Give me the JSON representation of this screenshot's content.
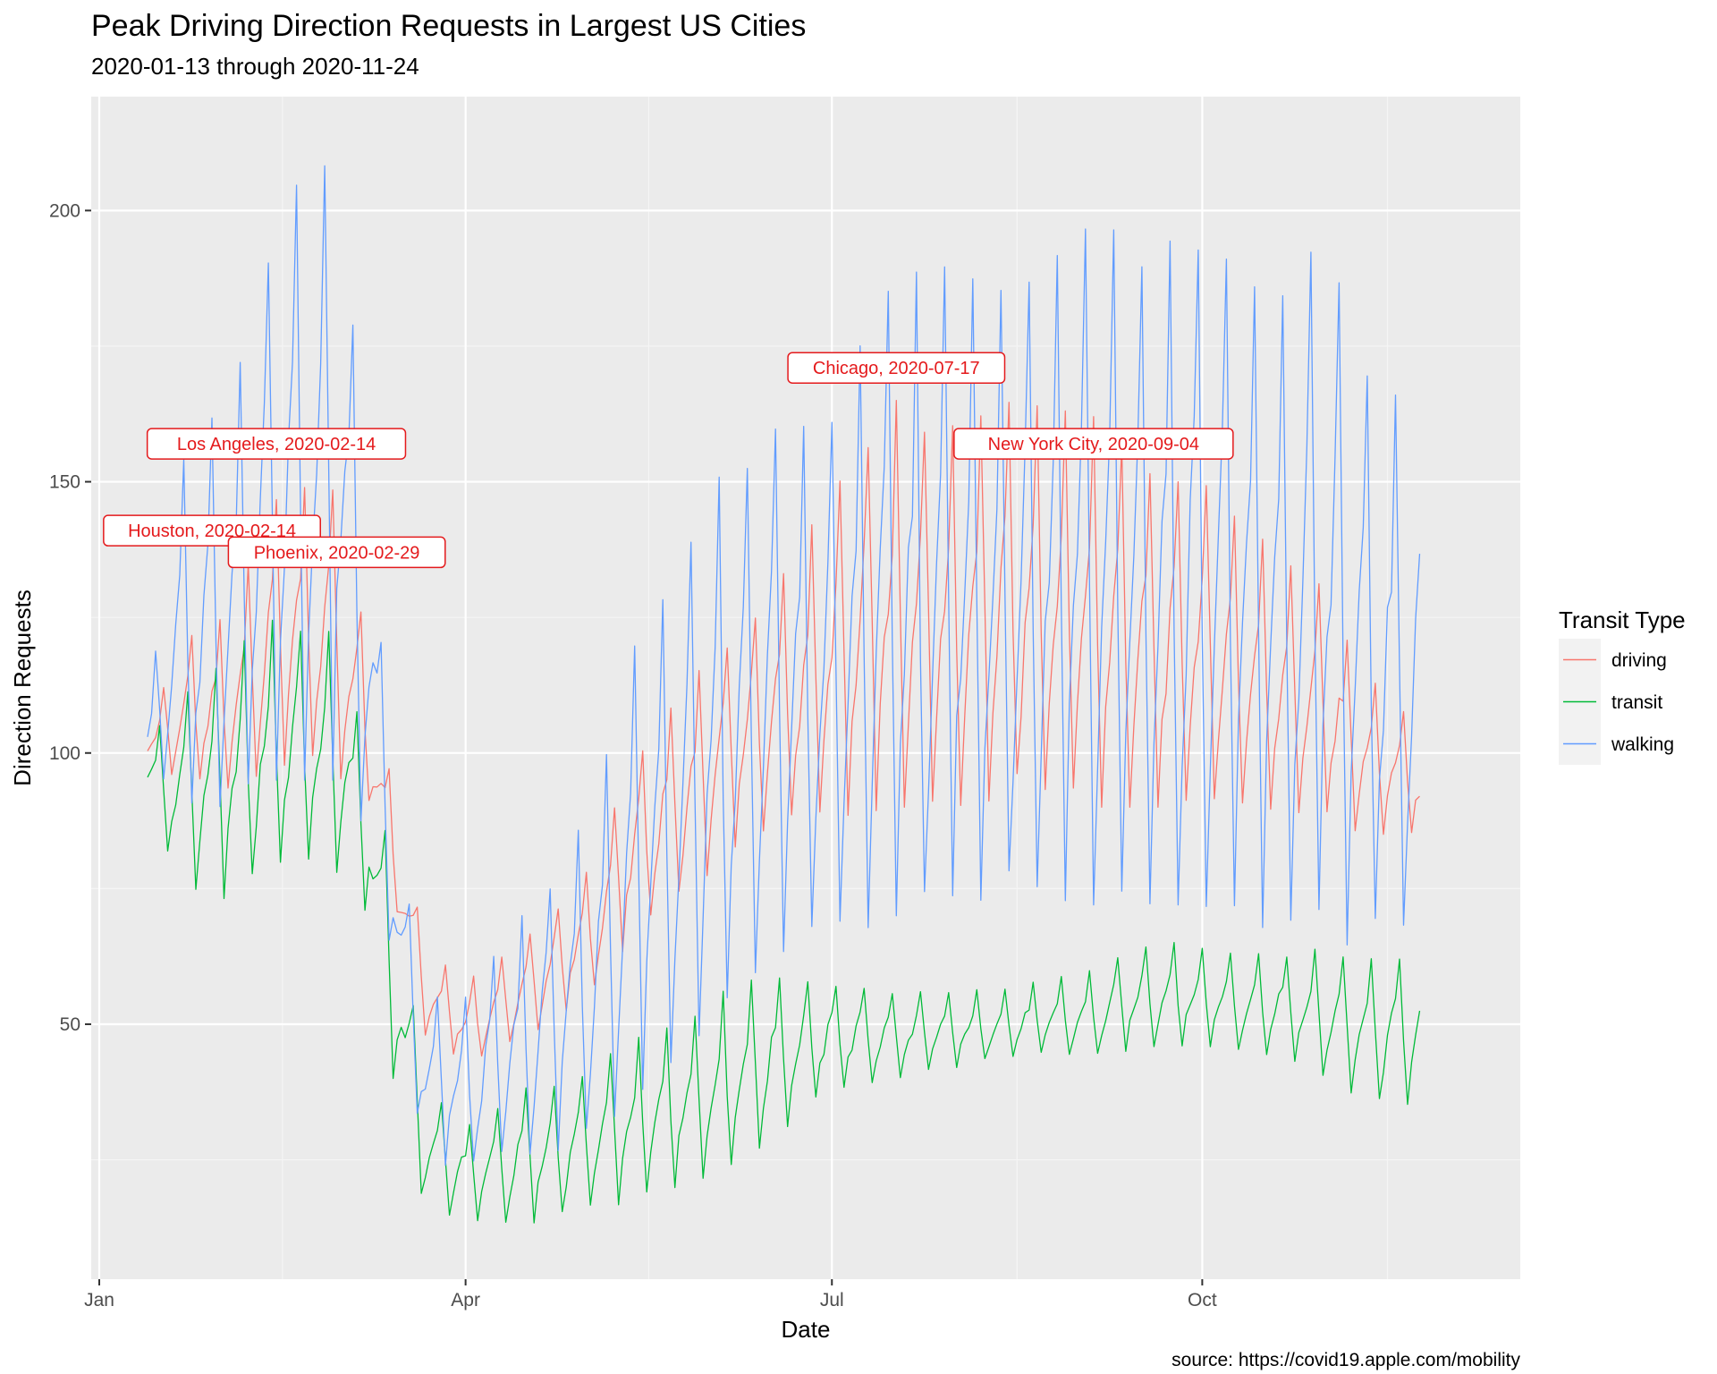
{
  "chart_data": {
    "type": "line",
    "title": "Peak Driving Direction Requests in Largest US Cities",
    "subtitle": "2020-01-13 through 2020-11-24",
    "xlabel": "Date",
    "ylabel": "Direction Requests",
    "caption": "source: https://covid19.apple.com/mobility",
    "x_range": [
      "2019-12-30",
      "2020-12-19"
    ],
    "ylim": [
      3,
      221
    ],
    "x_ticks": [
      {
        "date": "2020-01-01",
        "label": "Jan"
      },
      {
        "date": "2020-04-01",
        "label": "Apr"
      },
      {
        "date": "2020-07-01",
        "label": "Jul"
      },
      {
        "date": "2020-10-01",
        "label": "Oct"
      }
    ],
    "y_ticks": [
      50,
      100,
      150,
      200
    ],
    "grid": true,
    "legend": {
      "title": "Transit Type",
      "position": "right"
    },
    "series": [
      {
        "name": "driving",
        "color": "#F8766D",
        "anchors": [
          {
            "date": "2020-01-13",
            "low": 100,
            "high": 102
          },
          {
            "date": "2020-01-20",
            "low": 95,
            "high": 120
          },
          {
            "date": "2020-02-01",
            "low": 92,
            "high": 125
          },
          {
            "date": "2020-02-14",
            "low": 98,
            "high": 148
          },
          {
            "date": "2020-02-29",
            "low": 96,
            "high": 150
          },
          {
            "date": "2020-03-08",
            "low": 90,
            "high": 118
          },
          {
            "date": "2020-03-15",
            "low": 70,
            "high": 90
          },
          {
            "date": "2020-03-22",
            "low": 48,
            "high": 65
          },
          {
            "date": "2020-04-01",
            "low": 43,
            "high": 58
          },
          {
            "date": "2020-04-15",
            "low": 47,
            "high": 65
          },
          {
            "date": "2020-05-01",
            "low": 55,
            "high": 78
          },
          {
            "date": "2020-05-15",
            "low": 68,
            "high": 102
          },
          {
            "date": "2020-06-01",
            "low": 78,
            "high": 118
          },
          {
            "date": "2020-06-15",
            "low": 85,
            "high": 130
          },
          {
            "date": "2020-07-01",
            "low": 88,
            "high": 148
          },
          {
            "date": "2020-07-17",
            "low": 90,
            "high": 165
          },
          {
            "date": "2020-08-01",
            "low": 90,
            "high": 160
          },
          {
            "date": "2020-08-15",
            "low": 92,
            "high": 165
          },
          {
            "date": "2020-09-04",
            "low": 90,
            "high": 162
          },
          {
            "date": "2020-09-20",
            "low": 90,
            "high": 150
          },
          {
            "date": "2020-10-01",
            "low": 92,
            "high": 150
          },
          {
            "date": "2020-10-15",
            "low": 90,
            "high": 140
          },
          {
            "date": "2020-11-01",
            "low": 88,
            "high": 130
          },
          {
            "date": "2020-11-10",
            "low": 85,
            "high": 115
          },
          {
            "date": "2020-11-24",
            "low": 85,
            "high": 105
          }
        ]
      },
      {
        "name": "transit",
        "color": "#00BA38",
        "anchors": [
          {
            "date": "2020-01-13",
            "low": 93,
            "high": 100
          },
          {
            "date": "2020-01-20",
            "low": 76,
            "high": 112
          },
          {
            "date": "2020-02-01",
            "low": 72,
            "high": 118
          },
          {
            "date": "2020-02-14",
            "low": 80,
            "high": 125
          },
          {
            "date": "2020-02-29",
            "low": 78,
            "high": 122
          },
          {
            "date": "2020-03-08",
            "low": 70,
            "high": 100
          },
          {
            "date": "2020-03-15",
            "low": 35,
            "high": 75
          },
          {
            "date": "2020-03-22",
            "low": 16,
            "high": 40
          },
          {
            "date": "2020-04-01",
            "low": 14,
            "high": 32
          },
          {
            "date": "2020-04-15",
            "low": 13,
            "high": 38
          },
          {
            "date": "2020-05-01",
            "low": 15,
            "high": 42
          },
          {
            "date": "2020-05-15",
            "low": 18,
            "high": 48
          },
          {
            "date": "2020-06-01",
            "low": 22,
            "high": 55
          },
          {
            "date": "2020-06-15",
            "low": 28,
            "high": 60
          },
          {
            "date": "2020-07-01",
            "low": 38,
            "high": 58
          },
          {
            "date": "2020-07-17",
            "low": 40,
            "high": 56
          },
          {
            "date": "2020-08-01",
            "low": 42,
            "high": 56
          },
          {
            "date": "2020-08-15",
            "low": 44,
            "high": 57
          },
          {
            "date": "2020-09-04",
            "low": 44,
            "high": 60
          },
          {
            "date": "2020-09-20",
            "low": 46,
            "high": 66
          },
          {
            "date": "2020-10-01",
            "low": 46,
            "high": 64
          },
          {
            "date": "2020-10-15",
            "low": 45,
            "high": 63
          },
          {
            "date": "2020-11-01",
            "low": 40,
            "high": 64
          },
          {
            "date": "2020-11-10",
            "low": 36,
            "high": 62
          },
          {
            "date": "2020-11-24",
            "low": 35,
            "high": 64
          }
        ]
      },
      {
        "name": "walking",
        "color": "#619CFF",
        "anchors": [
          {
            "date": "2020-01-13",
            "low": 100,
            "high": 106
          },
          {
            "date": "2020-01-20",
            "low": 88,
            "high": 152
          },
          {
            "date": "2020-02-01",
            "low": 86,
            "high": 165
          },
          {
            "date": "2020-02-14",
            "low": 95,
            "high": 202
          },
          {
            "date": "2020-02-29",
            "low": 95,
            "high": 210
          },
          {
            "date": "2020-03-08",
            "low": 85,
            "high": 150
          },
          {
            "date": "2020-03-15",
            "low": 55,
            "high": 85
          },
          {
            "date": "2020-03-22",
            "low": 25,
            "high": 55
          },
          {
            "date": "2020-04-01",
            "low": 23,
            "high": 55
          },
          {
            "date": "2020-04-15",
            "low": 25,
            "high": 70
          },
          {
            "date": "2020-05-01",
            "low": 28,
            "high": 88
          },
          {
            "date": "2020-05-15",
            "low": 38,
            "high": 125
          },
          {
            "date": "2020-06-01",
            "low": 50,
            "high": 150
          },
          {
            "date": "2020-06-15",
            "low": 60,
            "high": 160
          },
          {
            "date": "2020-07-01",
            "low": 65,
            "high": 165
          },
          {
            "date": "2020-07-17",
            "low": 70,
            "high": 188
          },
          {
            "date": "2020-08-01",
            "low": 70,
            "high": 190
          },
          {
            "date": "2020-08-15",
            "low": 72,
            "high": 184
          },
          {
            "date": "2020-09-04",
            "low": 72,
            "high": 198
          },
          {
            "date": "2020-09-20",
            "low": 72,
            "high": 193
          },
          {
            "date": "2020-10-01",
            "low": 72,
            "high": 198
          },
          {
            "date": "2020-10-15",
            "low": 68,
            "high": 185
          },
          {
            "date": "2020-11-01",
            "low": 65,
            "high": 195
          },
          {
            "date": "2020-11-10",
            "low": 63,
            "high": 170
          },
          {
            "date": "2020-11-24",
            "low": 68,
            "high": 163
          }
        ]
      }
    ],
    "annotations": [
      {
        "label": "Houston, 2020-02-14",
        "date": "2020-01-29",
        "y": 141,
        "color": "#E41A1C"
      },
      {
        "label": "Los Angeles, 2020-02-14",
        "date": "2020-02-14",
        "y": 157,
        "color": "#E41A1C"
      },
      {
        "label": "Phoenix, 2020-02-29",
        "date": "2020-02-29",
        "y": 137,
        "color": "#E41A1C"
      },
      {
        "label": "Chicago, 2020-07-17",
        "date": "2020-07-17",
        "y": 171,
        "color": "#E41A1C"
      },
      {
        "label": "New York City, 2020-09-04",
        "date": "2020-09-04",
        "y": 157,
        "color": "#E41A1C"
      }
    ]
  }
}
